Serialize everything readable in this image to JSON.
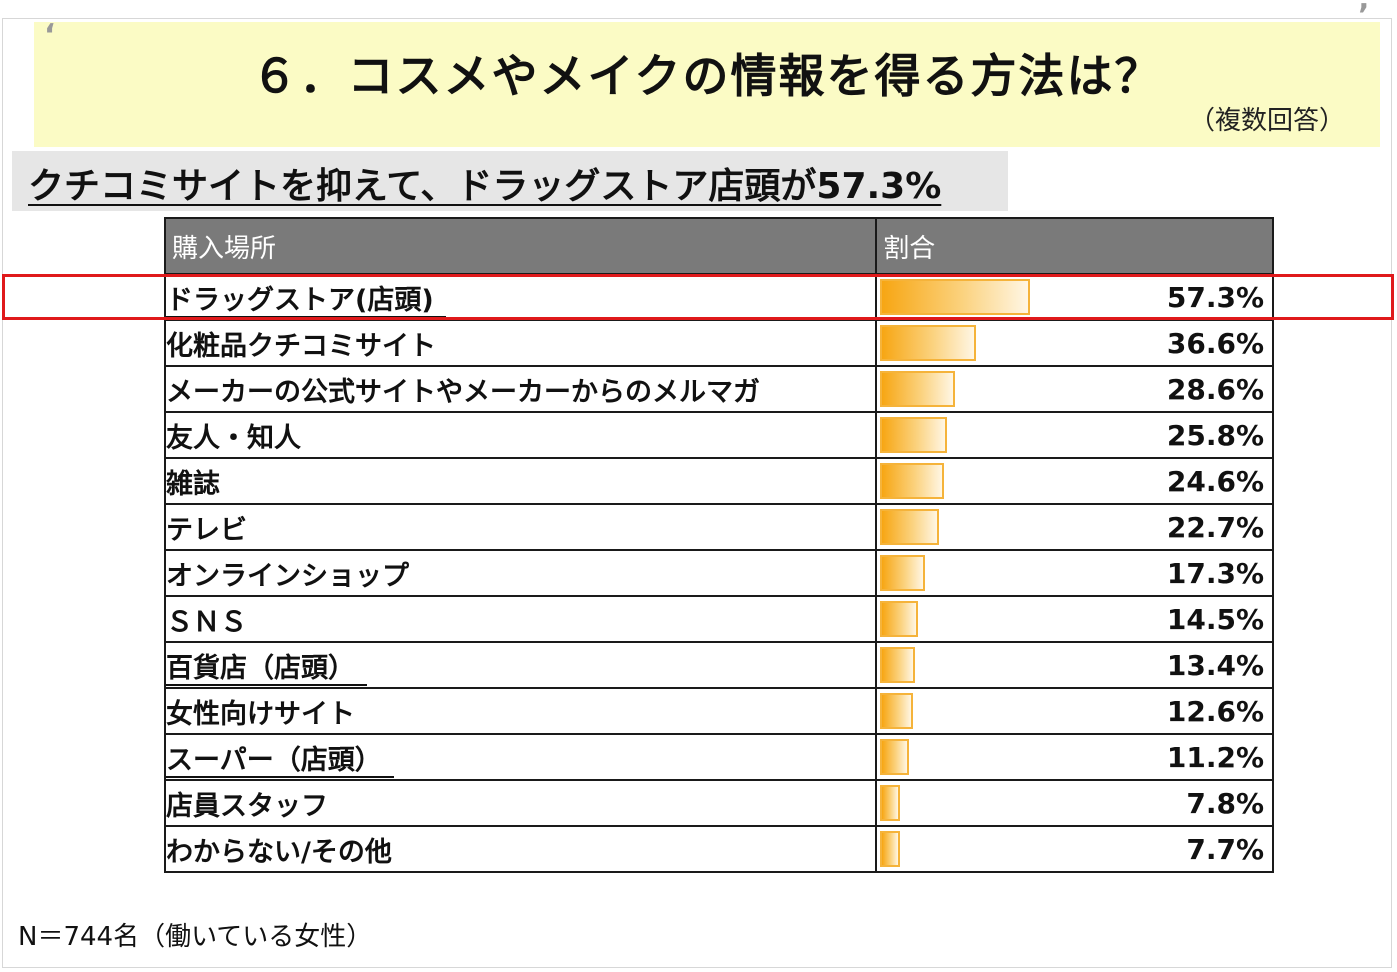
{
  "header": {
    "title": "６．コスメやメイクの情報を得る方法は？",
    "note": "（複数回答）"
  },
  "summary": "クチコミサイトを抑えて、ドラッグストア店頭が57.3%",
  "table": {
    "col1": "購入場所",
    "col2": "割合"
  },
  "footnote": "N＝744名（働いている女性）",
  "colors": {
    "bar": "#f7a613",
    "highlight": "#e0191b",
    "header_bg": "#7a7a7a"
  },
  "chart_data": {
    "type": "bar",
    "orientation": "horizontal",
    "categories": [
      "ドラッグストア(店頭)",
      "化粧品クチコミサイト",
      "メーカーの公式サイトやメーカーからのメルマガ",
      "友人・知人",
      "雑誌",
      "テレビ",
      "オンラインショップ",
      "ＳＮＳ",
      "百貨店（店頭）",
      "女性向けサイト",
      "スーパー（店頭）",
      "店員スタッフ",
      "わからない/その他"
    ],
    "values": [
      57.3,
      36.6,
      28.6,
      25.8,
      24.6,
      22.7,
      17.3,
      14.5,
      13.4,
      12.6,
      11.2,
      7.8,
      7.7
    ],
    "labels": [
      "57.3%",
      "36.6%",
      "28.6%",
      "25.8%",
      "24.6%",
      "22.7%",
      "17.3%",
      "14.5%",
      "13.4%",
      "12.6%",
      "11.2%",
      "7.8%",
      "7.7%"
    ],
    "underlined": [
      true,
      false,
      false,
      false,
      false,
      false,
      false,
      false,
      true,
      false,
      true,
      false,
      false
    ],
    "highlighted_index": 0,
    "xlim": [
      0,
      150
    ]
  }
}
